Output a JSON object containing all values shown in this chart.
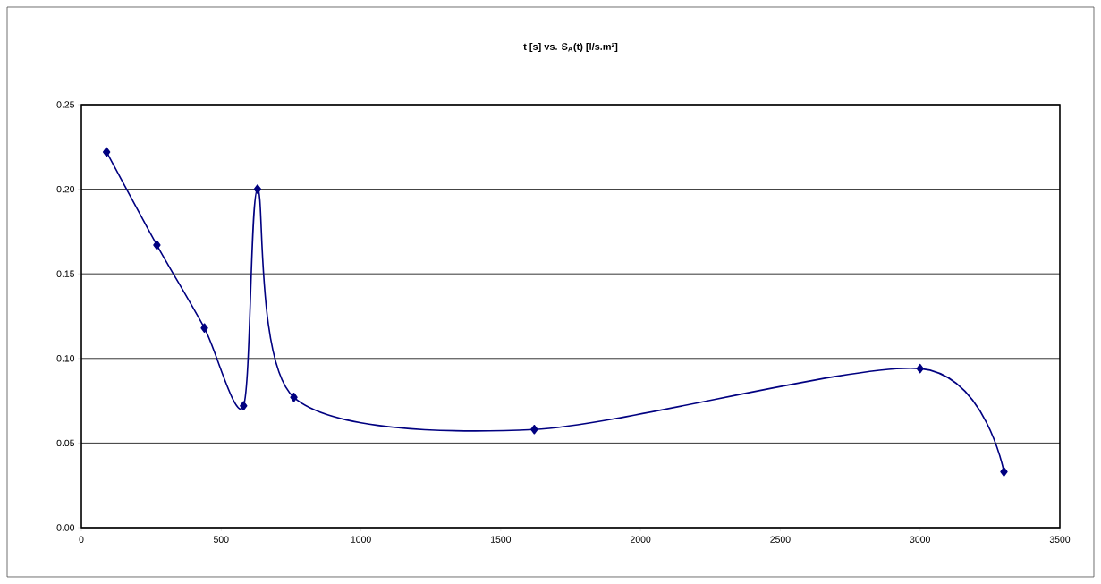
{
  "chart_data": {
    "type": "line",
    "title": "t [s] vs. S$_{A}$(t) [l/s.m²]",
    "x": [
      90,
      270,
      440,
      580,
      630,
      760,
      1620,
      3000,
      3300
    ],
    "series": [
      {
        "color": "#000080",
        "values": [
          0.222,
          0.167,
          0.118,
          0.072,
          0.2,
          0.077,
          0.058,
          0.094,
          0.033
        ]
      }
    ],
    "xlim": [
      0,
      3500
    ],
    "xticks": [
      0,
      500,
      1000,
      1500,
      2000,
      2500,
      3000,
      3500
    ],
    "ylim": [
      0,
      0.25
    ],
    "yticks": [
      {
        "value": 0,
        "label": "0.00"
      },
      {
        "value": 0.05,
        "label": "0.05"
      },
      {
        "value": 0.1,
        "label": "0.10"
      },
      {
        "value": 0.15,
        "label": "0.15"
      },
      {
        "value": 0.2,
        "label": "0.20"
      },
      {
        "value": 0.25,
        "label": "0.25"
      }
    ],
    "grid": "y",
    "marker": "diamond",
    "line_style": "solid"
  }
}
